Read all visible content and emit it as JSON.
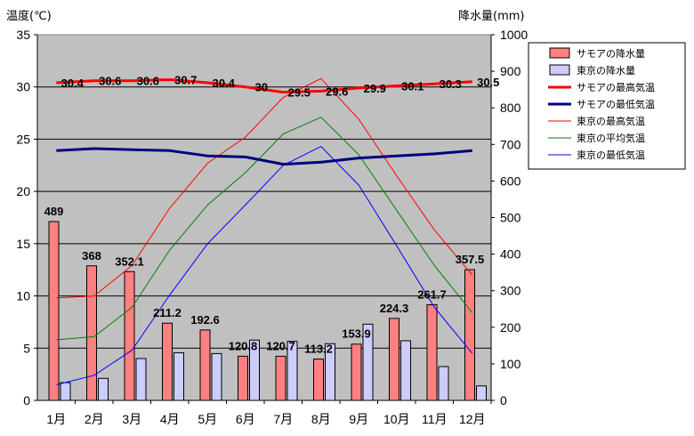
{
  "chart_data": {
    "type": "bar+line",
    "left_axis_label": "温度(℃)",
    "right_axis_label": "降水量(mm)",
    "left_ylim": [
      0,
      35
    ],
    "left_ticks": [
      "0",
      "5",
      "10",
      "15",
      "20",
      "25",
      "30",
      "35"
    ],
    "right_ylim": [
      0,
      1000
    ],
    "right_ticks": [
      "0",
      "100",
      "200",
      "300",
      "400",
      "500",
      "600",
      "700",
      "800",
      "900",
      "1000"
    ],
    "categories": [
      "1月",
      "2月",
      "3月",
      "4月",
      "5月",
      "6月",
      "7月",
      "8月",
      "9月",
      "10月",
      "11月",
      "12月"
    ],
    "bar_series": [
      {
        "name": "サモアの降水量",
        "color": "#ff8080",
        "values": [
          489,
          368,
          352.1,
          211.2,
          192.6,
          120.8,
          120.7,
          113.2,
          153.9,
          224.3,
          261.7,
          357.5
        ],
        "labels": [
          "489",
          "368",
          "352.1",
          "211.2",
          "192.6",
          "120.8",
          "120.7",
          "113.2",
          "153.9",
          "224.3",
          "261.7",
          "357.5"
        ]
      },
      {
        "name": "東京の降水量",
        "color": "#ccccff",
        "values": [
          48.6,
          60.2,
          114.5,
          130.3,
          128.0,
          164.9,
          161.5,
          155.1,
          208.5,
          163.1,
          92.5,
          39.6
        ]
      }
    ],
    "line_series": [
      {
        "name": "サモアの最高気温",
        "color": "#ff0000",
        "width": "thick",
        "values": [
          30.4,
          30.6,
          30.6,
          30.7,
          30.4,
          30.0,
          29.5,
          29.6,
          29.9,
          30.1,
          30.3,
          30.5
        ],
        "labels": [
          "30.4",
          "30.6",
          "30.6",
          "30.7",
          "30.4",
          "30",
          "29.5",
          "29.6",
          "29.9",
          "30.1",
          "30.3",
          "30.5"
        ]
      },
      {
        "name": "サモアの最低気温",
        "color": "#000080",
        "width": "thick",
        "values": [
          23.9,
          24.1,
          24.0,
          23.9,
          23.4,
          23.3,
          22.6,
          22.8,
          23.2,
          23.4,
          23.6,
          23.9
        ]
      },
      {
        "name": "東京の最高気温",
        "color": "#ff0000",
        "width": "thin",
        "values": [
          9.8,
          10.0,
          12.9,
          18.4,
          22.7,
          25.2,
          29.0,
          30.8,
          26.9,
          21.5,
          16.3,
          12.0
        ]
      },
      {
        "name": "東京の平均気温",
        "color": "#008000",
        "width": "thin",
        "values": [
          5.8,
          6.1,
          8.9,
          14.4,
          18.7,
          21.8,
          25.5,
          27.1,
          23.5,
          18.2,
          12.9,
          8.4
        ]
      },
      {
        "name": "東京の最低気温",
        "color": "#0000ff",
        "width": "thin",
        "values": [
          1.5,
          2.4,
          4.8,
          10.1,
          15.0,
          18.7,
          22.5,
          24.3,
          20.6,
          14.8,
          8.9,
          4.5
        ]
      }
    ],
    "legend_position": "top-right"
  }
}
